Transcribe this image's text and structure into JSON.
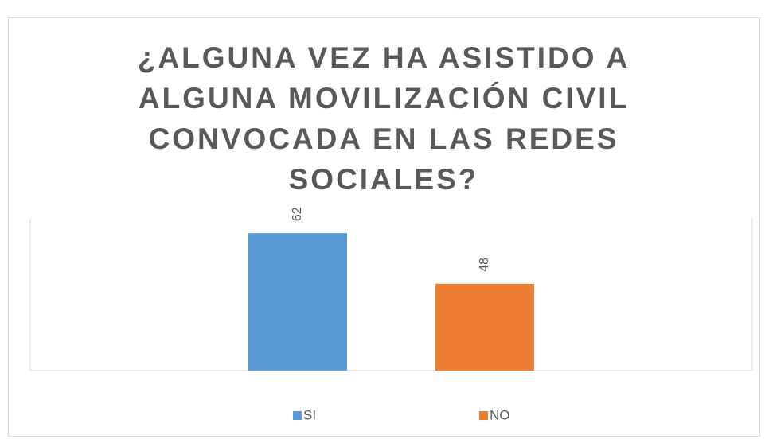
{
  "chart_data": {
    "type": "bar",
    "title": "¿ALGUNA VEZ HA ASISTIDO A ALGUNA MOVILIZACIÓN CIVIL CONVOCADA EN LAS REDES SOCIALES?",
    "categories": [
      null
    ],
    "series": [
      {
        "name": "SI",
        "color": "#5b9bd5",
        "values": [
          62
        ]
      },
      {
        "name": "NO",
        "color": "#ed7d31",
        "values": [
          48
        ]
      }
    ],
    "ylim": [
      24,
      66
    ],
    "legend": "bottom"
  }
}
